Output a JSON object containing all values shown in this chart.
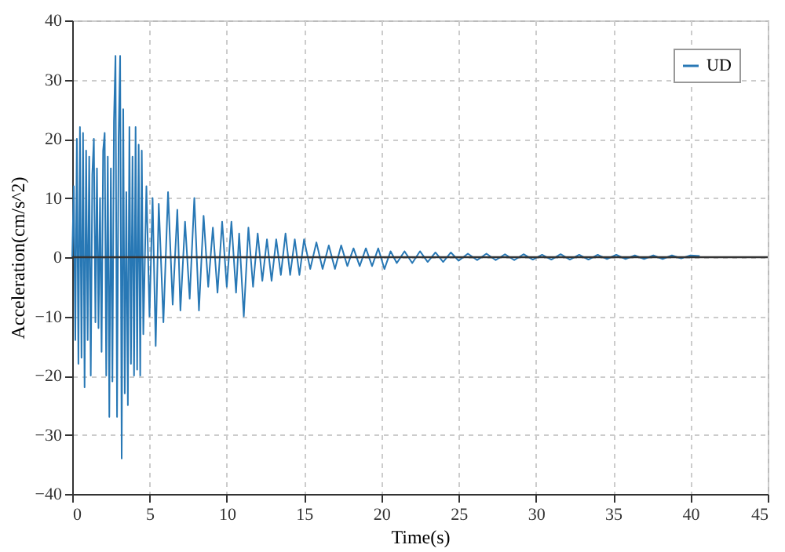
{
  "chart_data": {
    "type": "line",
    "xlabel": "Time(s)",
    "ylabel": "Acceleration(cm/s^2)",
    "xlim": [
      0,
      45
    ],
    "ylim": [
      -40,
      40
    ],
    "xticks": [
      0,
      5,
      10,
      15,
      20,
      25,
      30,
      35,
      40,
      45
    ],
    "yticks": [
      -40,
      -30,
      -20,
      -10,
      0,
      10,
      20,
      30,
      40
    ],
    "grid": true,
    "legend": "top right",
    "line_style": "solid",
    "ref_lines": [
      {
        "axis": "y",
        "value": 0,
        "color": "#333333"
      }
    ],
    "x": [
      0,
      0.1,
      0.2,
      0.3,
      0.4,
      0.5,
      0.6,
      0.7,
      0.8,
      0.9,
      1.0,
      1.1,
      1.2,
      1.3,
      1.4,
      1.5,
      1.6,
      1.7,
      1.8,
      1.9,
      2.0,
      2.1,
      2.2,
      2.3,
      2.4,
      2.5,
      2.6,
      2.7,
      2.8,
      2.9,
      3.0,
      3.1,
      3.2,
      3.3,
      3.4,
      3.5,
      3.6,
      3.7,
      3.8,
      3.9,
      4.0,
      4.1,
      4.2,
      4.3,
      4.4,
      4.5,
      4.6,
      4.8,
      5.0,
      5.2,
      5.4,
      5.6,
      5.9,
      6.2,
      6.5,
      6.8,
      7.0,
      7.3,
      7.6,
      7.9,
      8.2,
      8.5,
      8.8,
      9.1,
      9.4,
      9.7,
      10.0,
      10.3,
      10.6,
      10.8,
      11.1,
      11.4,
      11.7,
      12.0,
      12.3,
      12.6,
      12.9,
      13.2,
      13.5,
      13.8,
      14.1,
      14.4,
      14.7,
      15.0,
      15.4,
      15.8,
      16.2,
      16.6,
      17.0,
      17.4,
      17.8,
      18.2,
      18.6,
      19.0,
      19.4,
      19.8,
      20.2,
      20.6,
      21.0,
      21.5,
      22.0,
      22.5,
      23.0,
      23.5,
      24.0,
      24.5,
      25.0,
      25.6,
      26.2,
      26.8,
      27.4,
      28.0,
      28.6,
      29.2,
      29.8,
      30.4,
      31.0,
      31.6,
      32.2,
      32.8,
      33.4,
      34.0,
      34.6,
      35.2,
      35.8,
      36.4,
      37.0,
      37.6,
      38.2,
      38.8,
      39.4,
      40.0,
      40.6
    ],
    "series": [
      {
        "name": "UD",
        "color": "#2878b5",
        "values": [
          0,
          12,
          -14,
          20,
          -18,
          22,
          -17,
          21,
          -22,
          18,
          -14,
          17,
          -20,
          14,
          20,
          -11,
          15,
          -12,
          10,
          -16,
          18,
          21,
          -20,
          17,
          -27,
          15,
          -21,
          23,
          34,
          -27,
          20,
          34,
          -34,
          25,
          -23,
          11,
          -25,
          22,
          -18,
          17,
          -20,
          22,
          -19,
          19,
          -20,
          18,
          -13,
          12,
          -10,
          10,
          -15,
          9,
          -11,
          11,
          -8,
          8,
          -9,
          6,
          -7,
          10,
          -9,
          7,
          -5,
          5,
          -6,
          6,
          -5,
          6,
          -6,
          4,
          -10,
          5,
          -5,
          4,
          -4,
          3,
          -4,
          3,
          -3,
          4,
          -3,
          3,
          -3,
          3,
          -2,
          2.5,
          -2,
          2,
          -2,
          2,
          -1.5,
          1.5,
          -1.5,
          1.5,
          -1.5,
          1.5,
          -2,
          1,
          -1,
          1,
          -1,
          1,
          -0.8,
          0.8,
          -0.8,
          0.8,
          -0.6,
          0.6,
          -0.5,
          0.6,
          -0.5,
          0.5,
          -0.5,
          0.5,
          -0.4,
          0.4,
          -0.4,
          0.5,
          -0.4,
          0.4,
          -0.4,
          0.4,
          -0.3,
          0.4,
          -0.3,
          0.3,
          -0.3,
          0.3,
          -0.3,
          0.3,
          -0.2,
          0.3,
          0.2
        ]
      }
    ]
  }
}
